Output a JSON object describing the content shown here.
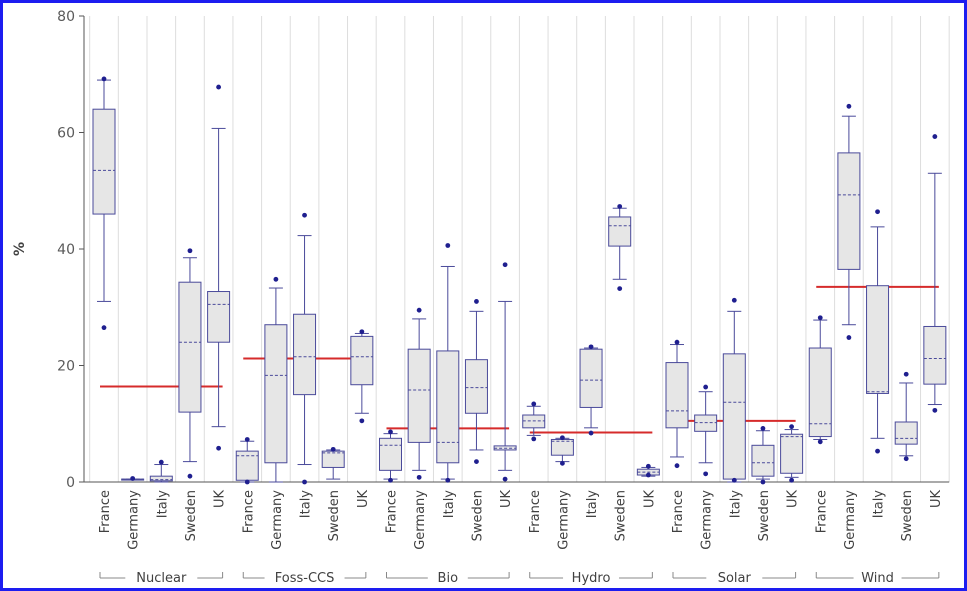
{
  "chart_data": {
    "type": "box",
    "xlabel": "",
    "ylabel": "%",
    "ylim": [
      0,
      80
    ],
    "yticks": [
      0,
      20,
      40,
      60,
      80
    ],
    "grid": "vertical",
    "colors": {
      "box_fill": "#e6e6e6",
      "box_edge": "#4a4a9a",
      "median": "#4a4a9a",
      "outlier": "#1f1f8f",
      "reference_line": "#d62b2b",
      "grid": "#dddddd",
      "frame": "#1d1df0"
    },
    "groups": [
      {
        "name": "Nuclear",
        "reference_value": 16.4,
        "boxes": [
          {
            "label": "France",
            "whisker_low": 31,
            "q1": 46,
            "median": 53.5,
            "q3": 64,
            "whisker_high": 69,
            "outliers": [
              26.5,
              69.2
            ]
          },
          {
            "label": "Germany",
            "whisker_low": 0.5,
            "q1": 0.5,
            "median": 0.5,
            "q3": 0.5,
            "whisker_high": 0.5,
            "outliers": [
              0.6
            ]
          },
          {
            "label": "Italy",
            "whisker_low": 0,
            "q1": 0.2,
            "median": 0.4,
            "q3": 1,
            "whisker_high": 3,
            "outliers": [
              3.4
            ]
          },
          {
            "label": "Sweden",
            "whisker_low": 3.5,
            "q1": 12,
            "median": 24,
            "q3": 34.3,
            "whisker_high": 38.5,
            "outliers": [
              1,
              39.7
            ]
          },
          {
            "label": "UK",
            "whisker_low": 9.5,
            "q1": 24,
            "median": 30.5,
            "q3": 32.7,
            "whisker_high": 60.7,
            "outliers": [
              5.8,
              67.8
            ]
          }
        ]
      },
      {
        "name": "Foss-CCS",
        "reference_value": 21.2,
        "boxes": [
          {
            "label": "France",
            "whisker_low": 0,
            "q1": 0.3,
            "median": 4.5,
            "q3": 5.3,
            "whisker_high": 7,
            "outliers": [
              7.3,
              0
            ]
          },
          {
            "label": "Germany",
            "whisker_low": 0,
            "q1": 3.3,
            "median": 18.3,
            "q3": 27,
            "whisker_high": 33.3,
            "outliers": [
              34.8
            ]
          },
          {
            "label": "Italy",
            "whisker_low": 3,
            "q1": 15,
            "median": 21.5,
            "q3": 28.8,
            "whisker_high": 42.3,
            "outliers": [
              45.8,
              0
            ]
          },
          {
            "label": "Sweden",
            "whisker_low": 0.5,
            "q1": 2.5,
            "median": 5,
            "q3": 5.3,
            "whisker_high": 5.5,
            "outliers": [
              5.6
            ]
          },
          {
            "label": "UK",
            "whisker_low": 11.8,
            "q1": 16.7,
            "median": 21.5,
            "q3": 25,
            "whisker_high": 25.5,
            "outliers": [
              10.5,
              25.8
            ]
          }
        ]
      },
      {
        "name": "Bio",
        "reference_value": 9.2,
        "boxes": [
          {
            "label": "France",
            "whisker_low": 0.5,
            "q1": 2,
            "median": 6.3,
            "q3": 7.5,
            "whisker_high": 8.3,
            "outliers": [
              0.3,
              8.6
            ]
          },
          {
            "label": "Germany",
            "whisker_low": 2,
            "q1": 6.8,
            "median": 15.8,
            "q3": 22.8,
            "whisker_high": 28,
            "outliers": [
              29.5,
              0.8
            ]
          },
          {
            "label": "Italy",
            "whisker_low": 0.5,
            "q1": 3.3,
            "median": 6.8,
            "q3": 22.5,
            "whisker_high": 37,
            "outliers": [
              40.6,
              0.3
            ]
          },
          {
            "label": "Sweden",
            "whisker_low": 5.5,
            "q1": 11.8,
            "median": 16.2,
            "q3": 21,
            "whisker_high": 29.3,
            "outliers": [
              31,
              3.5
            ]
          },
          {
            "label": "UK",
            "whisker_low": 2,
            "q1": 5.5,
            "median": 5.8,
            "q3": 6.2,
            "whisker_high": 31,
            "outliers": [
              37.3,
              0.5
            ]
          }
        ]
      },
      {
        "name": "Hydro",
        "reference_value": 8.5,
        "boxes": [
          {
            "label": "France",
            "whisker_low": 8,
            "q1": 9.3,
            "median": 10.5,
            "q3": 11.5,
            "whisker_high": 13,
            "outliers": [
              13.4,
              7.4
            ]
          },
          {
            "label": "Germany",
            "whisker_low": 3.5,
            "q1": 4.6,
            "median": 7,
            "q3": 7.3,
            "whisker_high": 7.5,
            "outliers": [
              3.2,
              7.6
            ]
          },
          {
            "label": "Italy",
            "whisker_low": 9.3,
            "q1": 12.8,
            "median": 17.5,
            "q3": 22.8,
            "whisker_high": 23,
            "outliers": [
              23.2,
              8.4
            ]
          },
          {
            "label": "Sweden",
            "whisker_low": 34.8,
            "q1": 40.5,
            "median": 44,
            "q3": 45.5,
            "whisker_high": 47,
            "outliers": [
              47.3,
              33.2
            ]
          },
          {
            "label": "UK",
            "whisker_low": 1,
            "q1": 1.2,
            "median": 1.7,
            "q3": 2.2,
            "whisker_high": 2.5,
            "outliers": [
              2.7,
              1.2
            ]
          }
        ]
      },
      {
        "name": "Solar",
        "reference_value": 10.5,
        "boxes": [
          {
            "label": "France",
            "whisker_low": 4.3,
            "q1": 9.3,
            "median": 12.2,
            "q3": 20.5,
            "whisker_high": 23.6,
            "outliers": [
              24,
              2.8
            ]
          },
          {
            "label": "Germany",
            "whisker_low": 3.3,
            "q1": 8.7,
            "median": 10.2,
            "q3": 11.5,
            "whisker_high": 15.5,
            "outliers": [
              16.3,
              1.4
            ]
          },
          {
            "label": "Italy",
            "whisker_low": 0,
            "q1": 0.5,
            "median": 13.7,
            "q3": 22,
            "whisker_high": 29.3,
            "outliers": [
              31.2,
              0.3
            ]
          },
          {
            "label": "Sweden",
            "whisker_low": 0.5,
            "q1": 1,
            "median": 3.3,
            "q3": 6.3,
            "whisker_high": 8.8,
            "outliers": [
              9.2,
              0
            ]
          },
          {
            "label": "UK",
            "whisker_low": 0.8,
            "q1": 1.5,
            "median": 7.8,
            "q3": 8.2,
            "whisker_high": 9,
            "outliers": [
              9.5,
              0.3
            ]
          }
        ]
      },
      {
        "name": "Wind",
        "reference_value": 33.5,
        "boxes": [
          {
            "label": "France",
            "whisker_low": 7.3,
            "q1": 7.8,
            "median": 10,
            "q3": 23,
            "whisker_high": 27.8,
            "outliers": [
              28.2,
              6.9
            ]
          },
          {
            "label": "Germany",
            "whisker_low": 27,
            "q1": 36.5,
            "median": 49.3,
            "q3": 56.5,
            "whisker_high": 62.8,
            "outliers": [
              64.5,
              24.8
            ]
          },
          {
            "label": "Italy",
            "whisker_low": 7.5,
            "q1": 15.2,
            "median": 15.5,
            "q3": 33.7,
            "whisker_high": 43.8,
            "outliers": [
              46.4,
              5.3
            ]
          },
          {
            "label": "Sweden",
            "whisker_low": 4.5,
            "q1": 6.5,
            "median": 7.5,
            "q3": 10.3,
            "whisker_high": 17,
            "outliers": [
              18.5,
              4
            ]
          },
          {
            "label": "UK",
            "whisker_low": 13.3,
            "q1": 16.8,
            "median": 21.2,
            "q3": 26.7,
            "whisker_high": 53,
            "outliers": [
              59.3,
              12.3
            ]
          }
        ]
      }
    ]
  }
}
